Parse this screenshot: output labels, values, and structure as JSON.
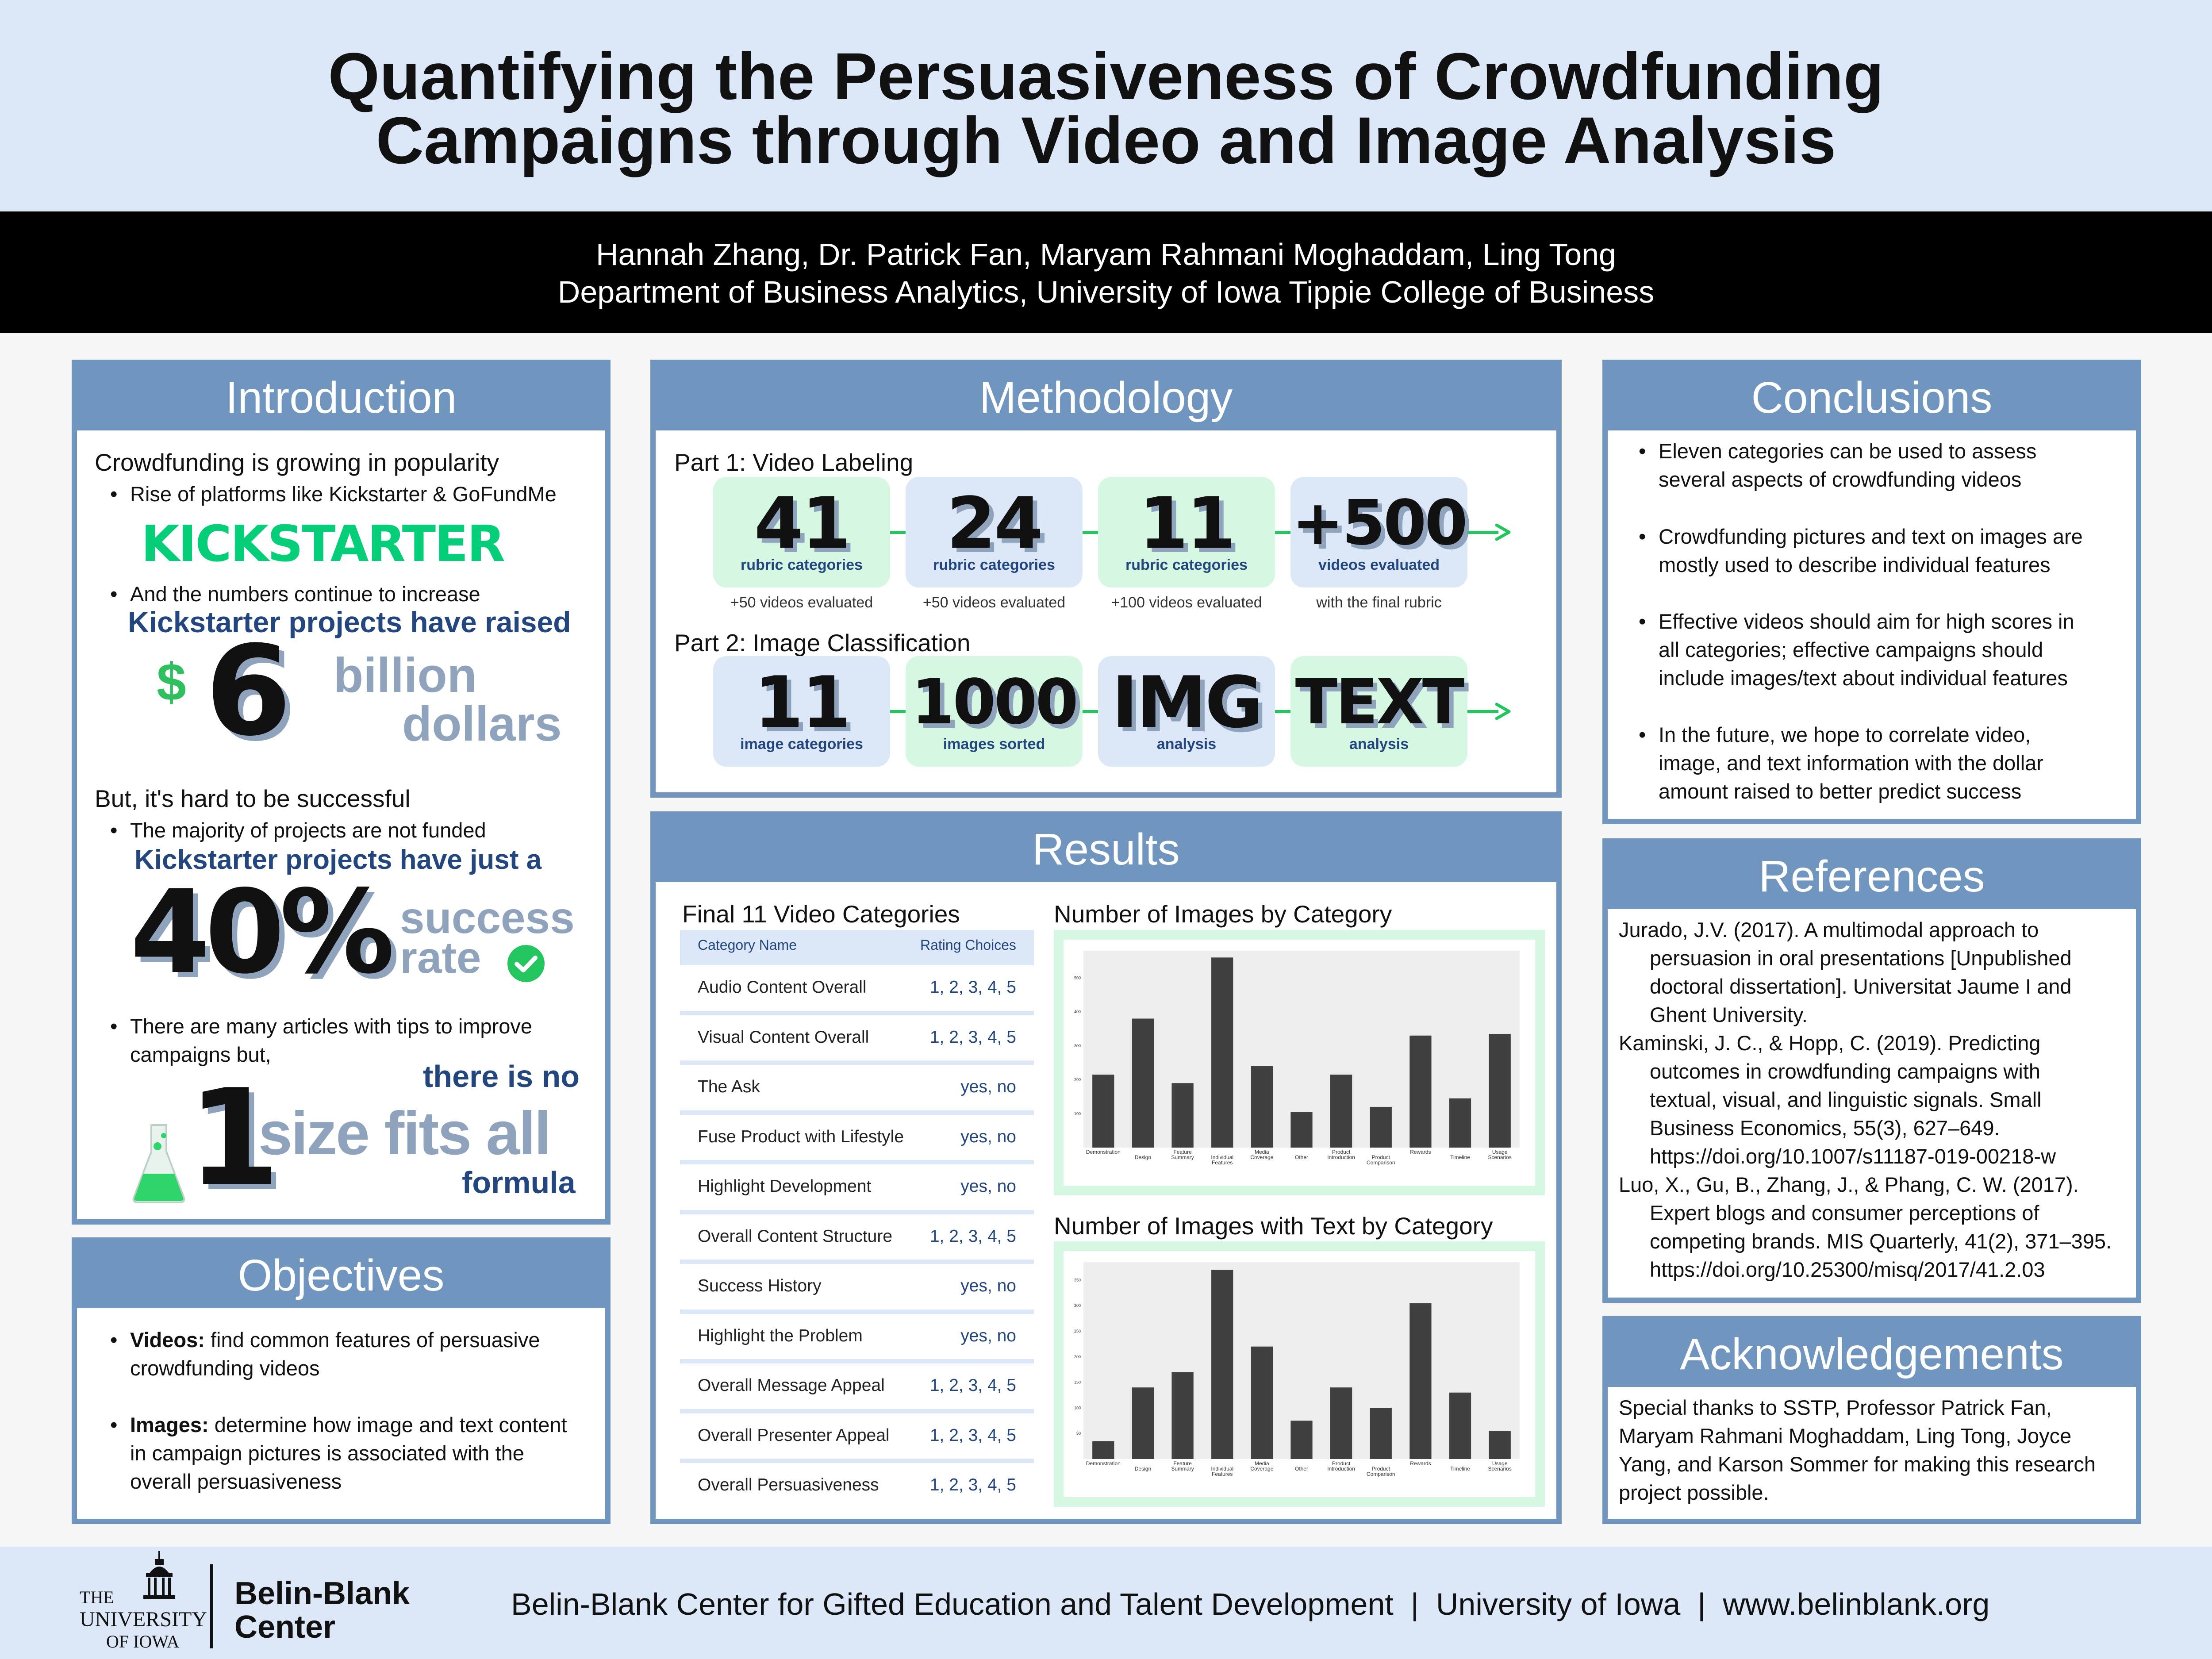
{
  "header": {
    "title_line1": "Quantifying the Persuasiveness of Crowdfunding",
    "title_line2": "Campaigns through Video and Image Analysis",
    "authors": "Hannah Zhang, Dr. Patrick Fan, Maryam Rahmani Moghaddam, Ling Tong",
    "department": "Department of Business Analytics, University of Iowa Tippie College of Business"
  },
  "introduction": {
    "heading": "Introduction",
    "sub1": "Crowdfunding is growing in popularity",
    "b1": "Rise of platforms like Kickstarter & GoFundMe",
    "logo_text": "KICKSTARTER",
    "b2": "And the numbers continue to increase",
    "raised_caption": "Kickstarter projects have raised",
    "dollar_sign": "$",
    "raised_value": "6",
    "raised_unit1": "billion",
    "raised_unit2": "dollars",
    "sub2": "But, it's hard to be successful",
    "b3": "The majority of projects are not funded",
    "success_caption": "Kickstarter projects have just a",
    "success_value": "40%",
    "success_unit1": "success",
    "success_unit2": "rate",
    "b4_line1": "There are many articles with tips to improve",
    "b4_line2": "campaigns but,",
    "nosize_caption": "there is no",
    "nosize_value": "1",
    "nosize_text": "size fits all",
    "nosize_formula": "formula"
  },
  "objectives": {
    "heading": "Objectives",
    "o1_bold": "Videos:",
    "o1_l1": " find common features of persuasive",
    "o1_l2": "crowdfunding videos",
    "o2_bold": "Images:",
    "o2_l1": " determine how image and text content",
    "o2_l2": "in campaign pictures is associated with the",
    "o2_l3": "overall persuasiveness"
  },
  "methodology": {
    "heading": "Methodology",
    "part1": "Part 1: Video Labeling",
    "part2": "Part 2: Image Classification",
    "row1": [
      {
        "value": "41",
        "label": "rubric categories",
        "note": "+50 videos evaluated",
        "color": "green"
      },
      {
        "value": "24",
        "label": "rubric categories",
        "note": "+50 videos evaluated",
        "color": "blue"
      },
      {
        "value": "11",
        "label": "rubric categories",
        "note": "+100 videos evaluated",
        "color": "green"
      },
      {
        "value": "+500",
        "label": "videos evaluated",
        "note": "with the final rubric",
        "color": "blue"
      }
    ],
    "row2": [
      {
        "value": "11",
        "label": "image categories",
        "color": "blue"
      },
      {
        "value": "1000",
        "label": "images sorted",
        "color": "green"
      },
      {
        "value": "IMG",
        "label": "analysis",
        "color": "blue"
      },
      {
        "value": "TEXT",
        "label": "analysis",
        "color": "green"
      }
    ]
  },
  "results": {
    "heading": "Results",
    "table_title": "Final 11 Video Categories",
    "col1": "Category Name",
    "col2": "Rating Choices",
    "rows": [
      {
        "name": "Audio Content Overall",
        "choices": "1, 2, 3, 4, 5"
      },
      {
        "name": "Visual Content Overall",
        "choices": "1, 2, 3, 4, 5"
      },
      {
        "name": "The Ask",
        "choices": "yes, no"
      },
      {
        "name": "Fuse Product with Lifestyle",
        "choices": "yes, no"
      },
      {
        "name": "Highlight Development",
        "choices": "yes, no"
      },
      {
        "name": "Overall Content Structure",
        "choices": "1, 2, 3, 4, 5"
      },
      {
        "name": "Success History",
        "choices": "yes, no"
      },
      {
        "name": "Highlight the Problem",
        "choices": "yes, no"
      },
      {
        "name": "Overall Message Appeal",
        "choices": "1, 2, 3, 4, 5"
      },
      {
        "name": "Overall Presenter Appeal",
        "choices": "1, 2, 3, 4, 5"
      },
      {
        "name": "Overall Persuasiveness",
        "choices": "1, 2, 3, 4, 5"
      }
    ]
  },
  "chart_data": [
    {
      "type": "bar",
      "title": "Number of Images by Category",
      "categories": [
        "Demonstration",
        "Design",
        "Feature Summary",
        "Individual Features",
        "Media Coverage",
        "Other",
        "Product Introduction",
        "Product Comparison",
        "Rewards",
        "Timeline",
        "Usage Scenarios"
      ],
      "values": [
        215,
        380,
        190,
        560,
        240,
        105,
        215,
        120,
        330,
        145,
        335
      ],
      "ylim": [
        0,
        580
      ],
      "yticks": [
        100,
        200,
        300,
        400,
        500
      ],
      "bar_color": "#404040"
    },
    {
      "type": "bar",
      "title": "Number of Images with Text by Category",
      "categories": [
        "Demonstration",
        "Design",
        "Feature Summary",
        "Individual Features",
        "Media Coverage",
        "Other",
        "Product Introduction",
        "Product Comparison",
        "Rewards",
        "Timeline",
        "Usage Scenarios"
      ],
      "values": [
        35,
        140,
        170,
        370,
        220,
        75,
        140,
        100,
        305,
        130,
        55
      ],
      "ylim": [
        0,
        385
      ],
      "yticks": [
        50,
        100,
        150,
        200,
        250,
        300,
        350
      ],
      "bar_color": "#404040"
    }
  ],
  "conclusions": {
    "heading": "Conclusions",
    "items": [
      [
        "Eleven categories can be used to assess",
        "several aspects of crowdfunding videos"
      ],
      [
        "Crowdfunding pictures and text on images are",
        "mostly used to describe individual features"
      ],
      [
        "Effective videos should aim for high scores in",
        "all categories; effective campaigns should",
        "include images/text about individual features"
      ],
      [
        "In the future, we hope to correlate video,",
        "image, and text information with the dollar",
        "amount raised to better predict success"
      ]
    ]
  },
  "references": {
    "heading": "References",
    "items": [
      [
        "Jurado, J.V. (2017). A multimodal approach to",
        "persuasion in oral presentations [Unpublished",
        "doctoral dissertation]. Universitat Jaume I and",
        "Ghent University."
      ],
      [
        "Kaminski, J. C., & Hopp, C. (2019). Predicting",
        "outcomes in crowdfunding campaigns with",
        "textual, visual, and linguistic signals. Small",
        "Business Economics, 55(3), 627–649.",
        "https://doi.org/10.1007/s11187-019-00218-w"
      ],
      [
        "Luo, X., Gu, B., Zhang, J., & Phang, C. W. (2017).",
        "Expert blogs and consumer perceptions of",
        "competing brands. MIS Quarterly, 41(2), 371–395.",
        "https://doi.org/10.25300/misq/2017/41.2.03"
      ]
    ]
  },
  "acknowledgements": {
    "heading": "Acknowledgements",
    "lines": [
      "Special thanks to SSTP, Professor Patrick Fan,",
      "Maryam Rahmani Moghaddam, Ling Tong, Joyce",
      "Yang, and Karson Sommer for making this research",
      "project possible."
    ]
  },
  "footer": {
    "uiowa_the": "THE",
    "uiowa_university": "UNIVERSITY",
    "uiowa_of_iowa": "OF IOWA",
    "belin_line1": "Belin-Blank",
    "belin_line2": "Center",
    "text": "Belin-Blank Center for Gifted Education and Talent Development  |  University of Iowa  |  www.belinblank.org"
  }
}
